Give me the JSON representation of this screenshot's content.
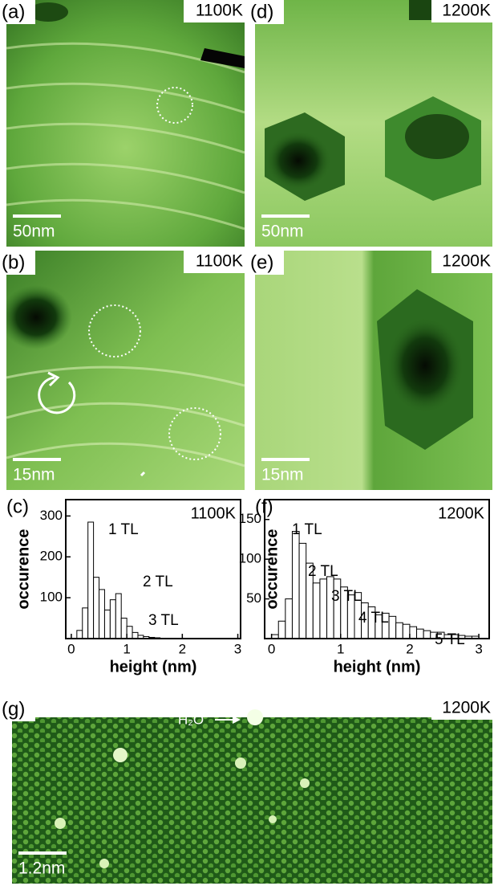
{
  "panels": [
    {
      "label": "(a)",
      "temperature": "1100K",
      "scale": "50nm"
    },
    {
      "label": "(b)",
      "temperature": "1100K",
      "scale": "15nm"
    },
    {
      "label": "(d)",
      "temperature": "1200K",
      "scale": "50nm"
    },
    {
      "label": "(e)",
      "temperature": "1200K",
      "scale": "15nm"
    },
    {
      "label": "(g)",
      "temperature": "1200K",
      "scale": "1.2nm",
      "annotation": "H₂O"
    }
  ],
  "chart_data": [
    {
      "type": "histogram",
      "label": "(c)",
      "title": "1100K",
      "x_label": "height (nm)",
      "y_label": "occurence",
      "bins": [
        0,
        0.1,
        0.2,
        0.3,
        0.4,
        0.5,
        0.6,
        0.7,
        0.8,
        0.9,
        1.0,
        1.1,
        1.2,
        1.3,
        1.4,
        1.5,
        1.6,
        1.7,
        1.8,
        1.9,
        2.0,
        2.1,
        2.2,
        2.3,
        2.4,
        2.5,
        2.6,
        2.7,
        2.8,
        2.9,
        3.0
      ],
      "values": [
        0,
        20,
        75,
        285,
        150,
        120,
        70,
        95,
        110,
        50,
        30,
        15,
        8,
        5,
        3,
        2,
        1,
        1,
        1,
        0,
        0,
        0,
        0,
        0,
        0,
        0,
        0,
        0,
        0,
        0
      ],
      "color": "#ffffff",
      "xlim": [
        -0.1,
        3.05
      ],
      "xticks": [
        0,
        1,
        2,
        3
      ],
      "ylim": [
        0,
        340
      ],
      "yticks": [
        100,
        200,
        300
      ],
      "annotations": [
        "1 TL",
        "2 TL",
        "3 TL"
      ]
    },
    {
      "type": "histogram",
      "label": "(f)",
      "title": "1200K",
      "x_label": "height (nm)",
      "y_label": "occurence",
      "bins": [
        0,
        0.1,
        0.2,
        0.3,
        0.4,
        0.5,
        0.6,
        0.7,
        0.8,
        0.9,
        1.0,
        1.1,
        1.2,
        1.3,
        1.4,
        1.5,
        1.6,
        1.7,
        1.8,
        1.9,
        2.0,
        2.1,
        2.2,
        2.3,
        2.4,
        2.5,
        2.6,
        2.7,
        2.8,
        2.9,
        3.0
      ],
      "values": [
        5,
        22,
        50,
        135,
        120,
        95,
        70,
        75,
        78,
        75,
        65,
        55,
        58,
        45,
        40,
        30,
        32,
        28,
        20,
        18,
        15,
        12,
        10,
        8,
        8,
        5,
        5,
        4,
        3,
        3
      ],
      "color": "#ffffff",
      "xlim": [
        -0.1,
        3.15
      ],
      "xticks": [
        0,
        1,
        2,
        3
      ],
      "ylim": [
        0,
        175
      ],
      "yticks": [
        50,
        100,
        150
      ],
      "annotations": [
        "1 TL",
        "2 TL",
        "3 TL",
        "4 TL",
        "5 TL"
      ]
    }
  ]
}
